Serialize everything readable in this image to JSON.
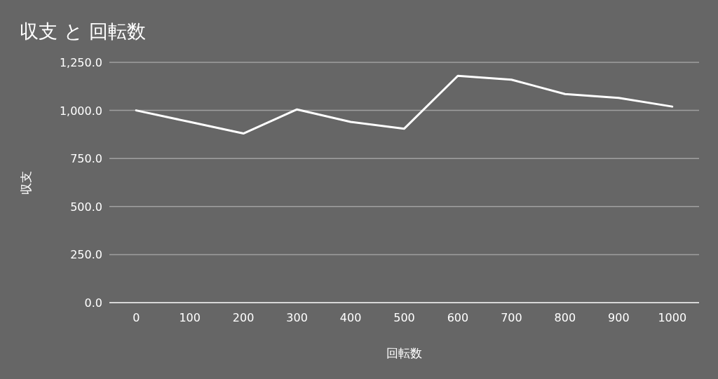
{
  "chart_data": {
    "type": "line",
    "title": "収支 と 回転数",
    "xlabel": "回転数",
    "ylabel": "収支",
    "categories": [
      "0",
      "100",
      "200",
      "300",
      "400",
      "500",
      "600",
      "700",
      "800",
      "900",
      "1000"
    ],
    "series": [
      {
        "color": "#ffffff",
        "values": [
          1000,
          940,
          880,
          1005,
          940,
          905,
          1180,
          1160,
          1085,
          1065,
          1020
        ]
      }
    ],
    "ylim": [
      0,
      1250
    ],
    "yticks": [
      {
        "value": 0,
        "label": "0.0"
      },
      {
        "value": 250,
        "label": "250.0"
      },
      {
        "value": 500,
        "label": "500.0"
      },
      {
        "value": 750,
        "label": "750.0"
      },
      {
        "value": 1000,
        "label": "1,000.0"
      },
      {
        "value": 1250,
        "label": "1,250.0"
      }
    ],
    "grid": "y"
  }
}
